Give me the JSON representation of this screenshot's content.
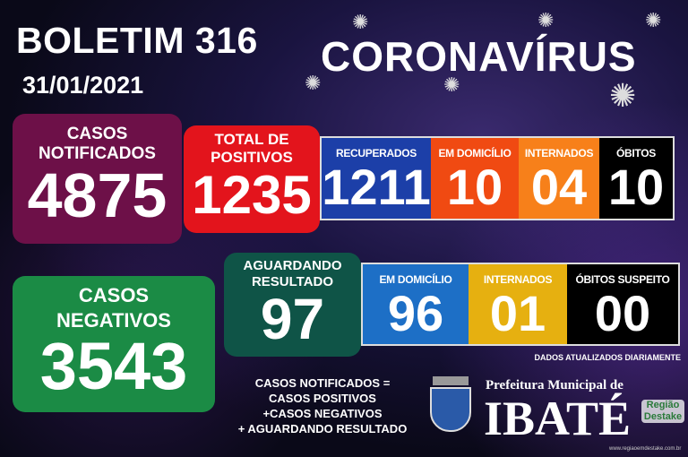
{
  "header": {
    "title": "BOLETIM 316",
    "date": "31/01/2021",
    "headline": "CORONAVÍRUS"
  },
  "notificados": {
    "label1": "CASOS",
    "label2": "NOTIFICADOS",
    "value": "4875",
    "color": "#6d1048"
  },
  "positivos": {
    "label1": "TOTAL DE",
    "label2": "POSITIVOS",
    "value": "1235",
    "color": "#e3141c"
  },
  "positivos_breakdown": [
    {
      "label": "RECUPERADOS",
      "value": "1211",
      "color": "#1c3fa8"
    },
    {
      "label": "EM DOMICÍLIO",
      "value": "10",
      "color": "#f04a12"
    },
    {
      "label": "INTERNADOS",
      "value": "04",
      "color": "#f7801a"
    },
    {
      "label": "ÓBITOS",
      "value": "10",
      "color": "#000000"
    }
  ],
  "negativos": {
    "label1": "CASOS",
    "label2": "NEGATIVOS",
    "value": "3543",
    "color": "#1b8b45"
  },
  "aguardando": {
    "label1": "AGUARDANDO",
    "label2": "RESULTADO",
    "value": "97",
    "color": "#0f5447"
  },
  "aguardando_breakdown": [
    {
      "label": "EM DOMICÍLIO",
      "value": "96",
      "color": "#1d6fc6"
    },
    {
      "label": "INTERNADOS",
      "value": "01",
      "color": "#e6b010"
    },
    {
      "label": "ÓBITOS SUSPEITO",
      "value": "00",
      "color": "#000000"
    }
  ],
  "note": "DADOS ATUALIZADOS DIARIAMENTE",
  "formula": [
    "CASOS NOTIFICADOS =",
    "CASOS POSITIVOS",
    "+CASOS NEGATIVOS",
    "+ AGUARDANDO RESULTADO"
  ],
  "footer": {
    "prefeitura": "Prefeitura Municipal de",
    "city": "IBATÉ",
    "partner": "Região Destake",
    "site": "www.regiaoemdestake.com.br"
  }
}
